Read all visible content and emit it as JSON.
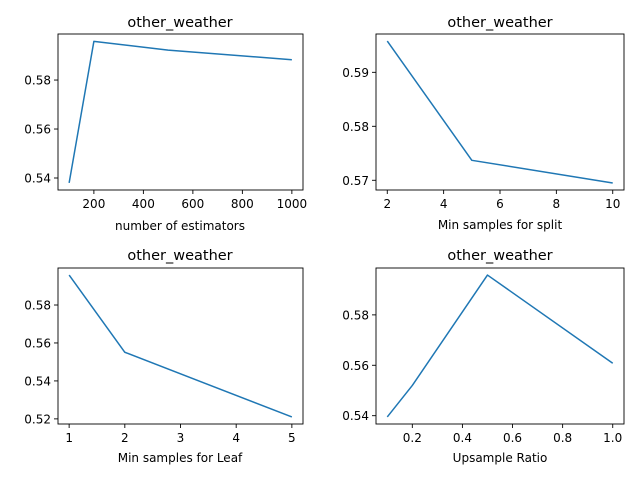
{
  "figure": {
    "background": "#ffffff",
    "line_color": "#1f77b4"
  },
  "chart_data": [
    {
      "type": "line",
      "title": "other_weather",
      "xlabel": "number of estimators",
      "ylabel": "",
      "x": [
        100,
        200,
        500,
        1000
      ],
      "series": [
        {
          "values": [
            0.538,
            0.5958,
            0.5922,
            0.5883
          ]
        }
      ],
      "xlim": [
        55,
        1045
      ],
      "ylim": [
        0.5351,
        0.5988
      ],
      "xticks": [
        200,
        400,
        600,
        800,
        1000
      ],
      "xtick_labels": [
        "200",
        "400",
        "600",
        "800",
        "1000"
      ],
      "yticks": [
        0.54,
        0.56,
        0.58
      ],
      "ytick_labels": [
        "0.54",
        "0.56",
        "0.58"
      ],
      "grid": false,
      "legend": "none"
    },
    {
      "type": "line",
      "title": "other_weather",
      "xlabel": "Min samples for split",
      "ylabel": "",
      "x": [
        2,
        5,
        10
      ],
      "series": [
        {
          "values": [
            0.5958,
            0.5737,
            0.5695
          ]
        }
      ],
      "xlim": [
        1.6,
        10.4
      ],
      "ylim": [
        0.5682,
        0.5971
      ],
      "xticks": [
        2,
        4,
        6,
        8,
        10
      ],
      "xtick_labels": [
        "2",
        "4",
        "6",
        "8",
        "10"
      ],
      "yticks": [
        0.57,
        0.58,
        0.59
      ],
      "ytick_labels": [
        "0.57",
        "0.58",
        "0.59"
      ],
      "grid": false,
      "legend": "none"
    },
    {
      "type": "line",
      "title": "other_weather",
      "xlabel": "Min samples for Leaf",
      "ylabel": "",
      "x": [
        1,
        2,
        5
      ],
      "series": [
        {
          "values": [
            0.5958,
            0.5551,
            0.521
          ]
        }
      ],
      "xlim": [
        0.8,
        5.2
      ],
      "ylim": [
        0.5173,
        0.5995
      ],
      "xticks": [
        1,
        2,
        3,
        4,
        5
      ],
      "xtick_labels": [
        "1",
        "2",
        "3",
        "4",
        "5"
      ],
      "yticks": [
        0.52,
        0.54,
        0.56,
        0.58
      ],
      "ytick_labels": [
        "0.52",
        "0.54",
        "0.56",
        "0.58"
      ],
      "grid": false,
      "legend": "none"
    },
    {
      "type": "line",
      "title": "other_weather",
      "xlabel": "Upsample Ratio",
      "ylabel": "",
      "x": [
        0.1,
        0.2,
        0.5,
        1.0
      ],
      "series": [
        {
          "values": [
            0.5395,
            0.552,
            0.5958,
            0.5608
          ]
        }
      ],
      "xlim": [
        0.055,
        1.045
      ],
      "ylim": [
        0.5367,
        0.5986
      ],
      "xticks": [
        0.2,
        0.4,
        0.6,
        0.8,
        1.0
      ],
      "xtick_labels": [
        "0.2",
        "0.4",
        "0.6",
        "0.8",
        "1.0"
      ],
      "yticks": [
        0.54,
        0.56,
        0.58
      ],
      "ytick_labels": [
        "0.54",
        "0.56",
        "0.58"
      ],
      "grid": false,
      "legend": "none"
    }
  ]
}
